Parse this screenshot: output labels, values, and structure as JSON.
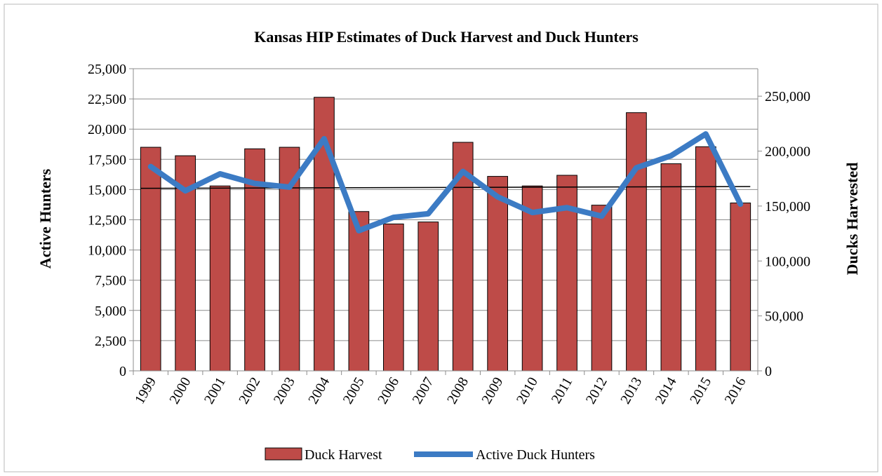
{
  "chart_data": {
    "type": "bar",
    "title": "Kansas HIP Estimates of Duck Harvest and Duck Hunters",
    "ylabel_left": "Active Hunters",
    "ylabel_right": "Ducks Harvested",
    "categories": [
      "1999",
      "2000",
      "2001",
      "2002",
      "2003",
      "2004",
      "2005",
      "2006",
      "2007",
      "2008",
      "2009",
      "2010",
      "2011",
      "2012",
      "2013",
      "2014",
      "2015",
      "2016"
    ],
    "left_axis": {
      "min": 0,
      "max": 25000,
      "step": 2500,
      "ticks": [
        "0",
        "2,500",
        "5,000",
        "7,500",
        "10,000",
        "12,500",
        "15,000",
        "17,500",
        "20,000",
        "22,500",
        "25,000"
      ]
    },
    "right_axis": {
      "min": 0,
      "max": 275000,
      "step": 50000,
      "ticks": [
        "0",
        "50,000",
        "100,000",
        "150,000",
        "200,000",
        "250,000"
      ]
    },
    "series": [
      {
        "name": "Duck Harvest",
        "kind": "bar",
        "axis": "right",
        "color": "#be4b48",
        "values": [
          203500,
          195800,
          168300,
          202100,
          203500,
          249000,
          145000,
          133700,
          135500,
          208000,
          177000,
          168300,
          178000,
          150800,
          235000,
          188500,
          204000,
          152800
        ]
      },
      {
        "name": "Active Duck Hunters",
        "kind": "line",
        "axis": "left",
        "color": "#3c7bc4",
        "values": [
          16900,
          14900,
          16300,
          15500,
          15200,
          19200,
          11600,
          12700,
          13000,
          16500,
          14400,
          13100,
          13500,
          12800,
          16800,
          17800,
          19600,
          13800
        ]
      }
    ],
    "trend_line": {
      "axis": "left",
      "start": 15100,
      "end": 15250,
      "color": "#000000"
    },
    "grid": true,
    "legend": "bottom"
  }
}
